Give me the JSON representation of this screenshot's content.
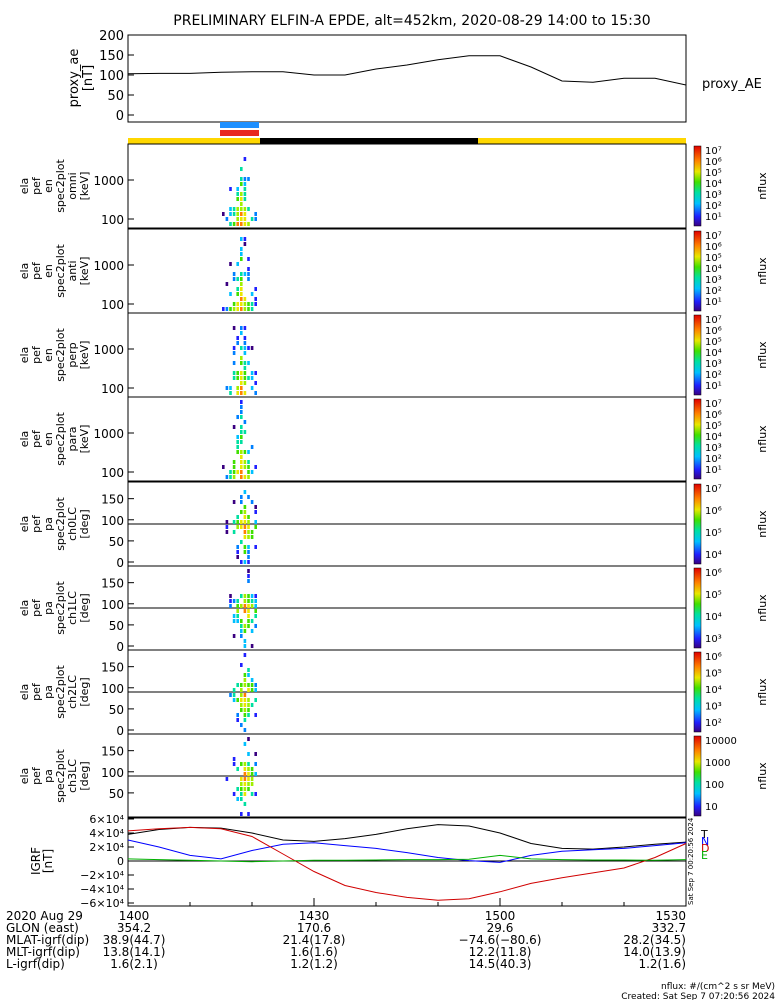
{
  "title": "PRELIMINARY ELFIN-A EPDE, alt=452km, 2020-08-29 14:00 to 15:30",
  "colors": {
    "sci_zone_blue": "#1e90ff",
    "sci_zone_red": "#e8281e",
    "ephemeris_yellow": "#ffd700",
    "ephemeris_black": "#000000",
    "grf_black": "#000000",
    "grf_blue": "#0000ff",
    "grf_red": "#d00000",
    "grf_green": "#00b000"
  },
  "panels": [
    {
      "ylabel": [
        "ela",
        "pef",
        "en",
        "spec2plot",
        "omni",
        "[keV]"
      ],
      "ticks": [
        "1000",
        "100"
      ],
      "kind": "energy",
      "colorbar": {
        "label": "nflux",
        "ticks": [
          "10⁷",
          "10⁶",
          "10⁵",
          "10⁴",
          "10³",
          "10²",
          "10¹"
        ]
      }
    },
    {
      "ylabel": [
        "ela",
        "pef",
        "en",
        "spec2plot",
        "anti",
        "[keV]"
      ],
      "ticks": [
        "1000",
        "100"
      ],
      "kind": "energy",
      "colorbar": {
        "label": "nflux",
        "ticks": [
          "10⁷",
          "10⁶",
          "10⁵",
          "10⁴",
          "10³",
          "10²",
          "10¹"
        ]
      }
    },
    {
      "ylabel": [
        "ela",
        "pef",
        "en",
        "spec2plot",
        "perp",
        "[keV]"
      ],
      "ticks": [
        "1000",
        "100"
      ],
      "kind": "energy",
      "colorbar": {
        "label": "nflux",
        "ticks": [
          "10⁷",
          "10⁶",
          "10⁵",
          "10⁴",
          "10³",
          "10²",
          "10¹"
        ]
      }
    },
    {
      "ylabel": [
        "ela",
        "pef",
        "en",
        "spec2plot",
        "para",
        "[keV]"
      ],
      "ticks": [
        "1000",
        "100"
      ],
      "kind": "energy",
      "colorbar": {
        "label": "nflux",
        "ticks": [
          "10⁷",
          "10⁶",
          "10⁵",
          "10⁴",
          "10³",
          "10²",
          "10¹"
        ]
      }
    },
    {
      "ylabel": [
        "ela",
        "pef",
        "pa",
        "spec2plot",
        "ch0LC",
        "[deg]"
      ],
      "ticks": [
        "150",
        "100",
        "50",
        "0"
      ],
      "kind": "pa",
      "colorbar": {
        "label": "nflux",
        "ticks": [
          "10⁷",
          "10⁶",
          "10⁵",
          "10⁴"
        ]
      }
    },
    {
      "ylabel": [
        "ela",
        "pef",
        "pa",
        "spec2plot",
        "ch1LC",
        "[deg]"
      ],
      "ticks": [
        "150",
        "100",
        "50",
        "0"
      ],
      "kind": "pa",
      "colorbar": {
        "label": "nflux",
        "ticks": [
          "10⁶",
          "10⁵",
          "10⁴",
          "10³"
        ]
      }
    },
    {
      "ylabel": [
        "ela",
        "pef",
        "pa",
        "spec2plot",
        "ch2LC",
        "[deg]"
      ],
      "ticks": [
        "150",
        "100",
        "50",
        "0"
      ],
      "kind": "pa",
      "colorbar": {
        "label": "nflux",
        "ticks": [
          "10⁶",
          "10⁵",
          "10⁴",
          "10³",
          "10²"
        ]
      }
    },
    {
      "ylabel": [
        "ela",
        "pef",
        "pa",
        "spec2plot",
        "ch3LC",
        "[deg]"
      ],
      "ticks": [
        "150",
        "100",
        "50"
      ],
      "kind": "pa",
      "colorbar": {
        "label": "nflux",
        "ticks": [
          "10000",
          "1000",
          "100",
          "10"
        ]
      }
    }
  ],
  "chart_data": {
    "type": "line",
    "x": [
      "14:00",
      "14:05",
      "14:10",
      "14:15",
      "14:20",
      "14:25",
      "14:30",
      "14:35",
      "14:40",
      "14:45",
      "14:50",
      "14:55",
      "15:00",
      "15:05",
      "15:10",
      "15:15",
      "15:20",
      "15:25",
      "15:30"
    ],
    "proxy_ae": {
      "ylabel": [
        "proxy_ae",
        "[nT]"
      ],
      "ylim": [
        0,
        200
      ],
      "yticks": [
        "200",
        "150",
        "100",
        "50",
        "0"
      ],
      "legend": "proxy_AE",
      "values": [
        103,
        104,
        104,
        107,
        108,
        108,
        100,
        100,
        115,
        125,
        138,
        148,
        148,
        120,
        85,
        82,
        92,
        92,
        75
      ]
    },
    "grf": {
      "ylabel": [
        "IGRF",
        "[nT]"
      ],
      "ylim": [
        -60000,
        60000
      ],
      "yticks": [
        "6×10⁴",
        "4×10⁴",
        "2×10⁴",
        "0",
        "−2×10⁴",
        "−4×10⁴",
        "−6×10⁴"
      ],
      "series": [
        {
          "name": "T",
          "color": "#000000",
          "values": [
            38000,
            45000,
            48000,
            47000,
            40000,
            30000,
            28000,
            32000,
            38000,
            46000,
            52000,
            50000,
            40000,
            25000,
            18000,
            17000,
            20000,
            24000,
            27000
          ]
        },
        {
          "name": "N",
          "color": "#0000ff",
          "values": [
            30000,
            20000,
            8000,
            3000,
            15000,
            24000,
            26000,
            22000,
            18000,
            12000,
            5000,
            500,
            -2000,
            8000,
            14000,
            16000,
            18000,
            22000,
            26000
          ]
        },
        {
          "name": "D",
          "color": "#d00000",
          "values": [
            43000,
            46000,
            48000,
            46000,
            35000,
            10000,
            -15000,
            -35000,
            -45000,
            -52000,
            -56000,
            -54000,
            -44000,
            -32000,
            -24000,
            -17000,
            -10000,
            5000,
            25000
          ]
        },
        {
          "name": "E",
          "color": "#00b000",
          "values": [
            3000,
            2000,
            1000,
            0,
            -1000,
            0,
            1000,
            1000,
            1500,
            2000,
            2000,
            2500,
            8000,
            3000,
            2000,
            1500,
            1500,
            1000,
            2000
          ]
        }
      ]
    }
  },
  "time_table": {
    "rows": [
      {
        "label": "2020 Aug 29",
        "values": [
          "1400",
          "1430",
          "1500",
          "1530"
        ]
      },
      {
        "label": "GLON (east)",
        "values": [
          "354.2",
          "170.6",
          "29.6",
          "332.7"
        ]
      },
      {
        "label": "MLAT-igrf(dip)",
        "values": [
          "38.9(44.7)",
          "21.4(17.8)",
          "−74.6(−80.6)",
          "28.2(34.5)"
        ]
      },
      {
        "label": "MLT-igrf(dip)",
        "values": [
          "13.8(14.1)",
          "1.6(1.6)",
          "12.2(11.8)",
          "14.0(13.9)"
        ]
      },
      {
        "label": "L-igrf(dip)",
        "values": [
          "1.6(2.1)",
          "1.2(1.2)",
          "14.5(40.3)",
          "1.2(1.6)"
        ]
      }
    ]
  },
  "footer": {
    "units": "nflux: #/(cm^2 s sr MeV)",
    "created": "Created: Sat Sep  7 07:20:56 2024"
  },
  "side_stamp": "Sat Sep  7 00:20:56 2024"
}
